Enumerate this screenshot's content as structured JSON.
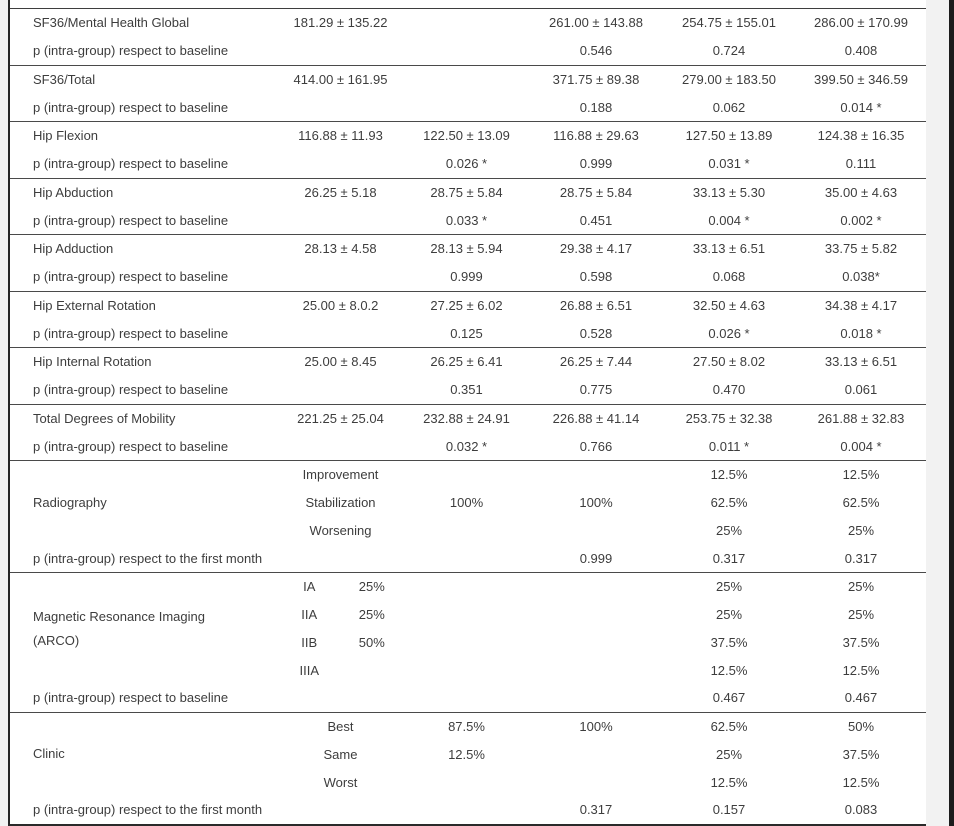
{
  "groups": [
    {
      "label": "SF36/Mental Health Global",
      "values": [
        "181.29 ± 135.22",
        "",
        "261.00 ± 143.88",
        "254.75 ± 155.01",
        "286.00 ± 170.99"
      ],
      "p_label": "p (intra-group) respect to baseline",
      "p_values": [
        "",
        "",
        "0.546",
        "0.724",
        "0.408"
      ]
    },
    {
      "label": "SF36/Total",
      "values": [
        "414.00 ± 161.95",
        "",
        "371.75 ± 89.38",
        "279.00 ± 183.50",
        "399.50 ± 346.59"
      ],
      "p_label": "p (intra-group) respect to baseline",
      "p_values": [
        "",
        "",
        "0.188",
        "0.062",
        "0.014 *"
      ]
    },
    {
      "label": "Hip Flexion",
      "values": [
        "116.88 ± 11.93",
        "122.50 ± 13.09",
        "116.88 ± 29.63",
        "127.50 ± 13.89",
        "124.38 ± 16.35"
      ],
      "p_label": "p (intra-group) respect to baseline",
      "p_values": [
        "",
        "0.026 *",
        "0.999",
        "0.031 *",
        "0.111"
      ]
    },
    {
      "label": "Hip Abduction",
      "values": [
        "26.25 ± 5.18",
        "28.75 ± 5.84",
        "28.75 ± 5.84",
        "33.13 ± 5.30",
        "35.00 ± 4.63"
      ],
      "p_label": "p (intra-group) respect to baseline",
      "p_values": [
        "",
        "0.033 *",
        "0.451",
        "0.004 *",
        "0.002 *"
      ]
    },
    {
      "label": "Hip Adduction",
      "values": [
        "28.13 ± 4.58",
        "28.13 ± 5.94",
        "29.38 ± 4.17",
        "33.13 ± 6.51",
        "33.75 ± 5.82"
      ],
      "p_label": "p (intra-group) respect to baseline",
      "p_values": [
        "",
        "0.999",
        "0.598",
        "0.068",
        "0.038*"
      ]
    },
    {
      "label": "Hip External Rotation",
      "values": [
        "25.00 ± 8.0.2",
        "27.25 ± 6.02",
        "26.88 ± 6.51",
        "32.50 ± 4.63",
        "34.38 ± 4.17"
      ],
      "p_label": "p (intra-group) respect to baseline",
      "p_values": [
        "",
        "0.125",
        "0.528",
        "0.026 *",
        "0.018 *"
      ]
    },
    {
      "label": "Hip Internal Rotation",
      "values": [
        "25.00 ± 8.45",
        "26.25 ± 6.41",
        "26.25 ± 7.44",
        "27.50 ± 8.02",
        "33.13 ± 6.51"
      ],
      "p_label": "p (intra-group) respect to baseline",
      "p_values": [
        "",
        "0.351",
        "0.775",
        "0.470",
        "0.061"
      ]
    },
    {
      "label": "Total Degrees of Mobility",
      "values": [
        "221.25 ± 25.04",
        "232.88 ± 24.91",
        "226.88 ± 41.14",
        "253.75 ± 32.38",
        "261.88 ± 32.83"
      ],
      "p_label": "p (intra-group) respect to baseline",
      "p_values": [
        "",
        "0.032 *",
        "0.766",
        "0.011 *",
        "0.004 *"
      ]
    },
    {
      "label": "Radiography",
      "rows": [
        {
          "name": "Improvement",
          "values": [
            "",
            "",
            "12.5%",
            "12.5%"
          ]
        },
        {
          "name": "Stabilization",
          "values": [
            "100%",
            "100%",
            "62.5%",
            "62.5%"
          ]
        },
        {
          "name": "Worsening",
          "values": [
            "",
            "",
            "25%",
            "25%"
          ]
        }
      ],
      "p_label": "p (intra-group) respect to the first month",
      "p_values": [
        "",
        "",
        "0.999",
        "0.317",
        "0.317"
      ]
    },
    {
      "label": "Magnetic Resonance Imaging",
      "label2": "(ARCO)",
      "rows": [
        {
          "stage": "IA",
          "pct": "25%",
          "values": [
            "",
            "",
            "25%",
            "25%"
          ]
        },
        {
          "stage": "IIA",
          "pct": "25%",
          "values": [
            "",
            "",
            "25%",
            "25%"
          ]
        },
        {
          "stage": "IIB",
          "pct": "50%",
          "values": [
            "",
            "",
            "37.5%",
            "37.5%"
          ]
        },
        {
          "stage": "IIIA",
          "pct": "",
          "values": [
            "",
            "",
            "12.5%",
            "12.5%"
          ]
        }
      ],
      "p_label": "p (intra-group) respect to baseline",
      "p_values": [
        "",
        "",
        "",
        "0.467",
        "0.467"
      ]
    },
    {
      "label": "Clinic",
      "rows": [
        {
          "name": "Best",
          "values": [
            "87.5%",
            "100%",
            "62.5%",
            "50%"
          ]
        },
        {
          "name": "Same",
          "values": [
            "12.5%",
            "",
            "25%",
            "37.5%"
          ]
        },
        {
          "name": "Worst",
          "values": [
            "",
            "",
            "12.5%",
            "12.5%"
          ]
        }
      ],
      "p_label": "p (intra-group) respect to the first month",
      "p_values": [
        "",
        "",
        "0.317",
        "0.157",
        "0.083"
      ]
    }
  ]
}
